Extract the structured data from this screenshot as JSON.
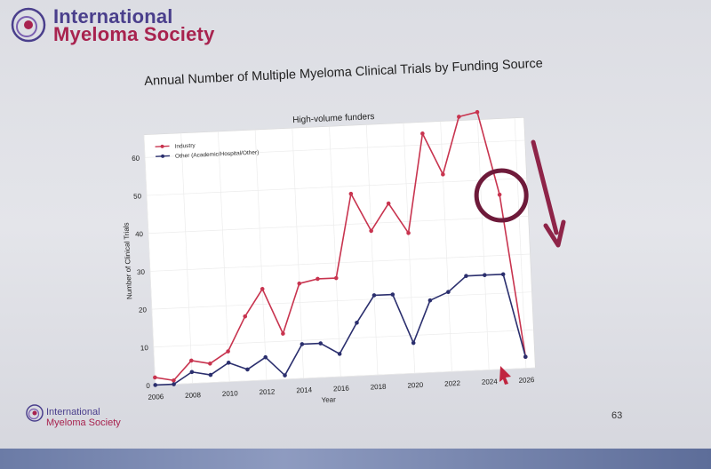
{
  "branding": {
    "top_line1": "International",
    "top_line2": "Myeloma Society",
    "bottom_line1": "International",
    "bottom_line2": "Myeloma Society",
    "purple": "#4a3f8c",
    "magenta": "#a8234f"
  },
  "slide": {
    "page_number": "63"
  },
  "chart_data": {
    "type": "line",
    "title": "Annual Number of Multiple Myeloma Clinical Trials by Funding Source",
    "subtitle": "High-volume funders",
    "xlabel": "Year",
    "ylabel": "Number of Clinical Trials",
    "x": [
      2006,
      2007,
      2008,
      2009,
      2010,
      2011,
      2012,
      2013,
      2014,
      2015,
      2016,
      2017,
      2018,
      2019,
      2020,
      2021,
      2022,
      2023,
      2024,
      2025,
      2026
    ],
    "xticks": [
      2006,
      2008,
      2010,
      2012,
      2014,
      2016,
      2018,
      2020,
      2022,
      2024,
      2026
    ],
    "yticks": [
      0,
      10,
      20,
      30,
      40,
      50,
      60
    ],
    "xlim": [
      2006,
      2026.5
    ],
    "ylim": [
      0,
      66
    ],
    "grid": true,
    "legend_position": "top-left",
    "series": [
      {
        "name": "Industry",
        "color": "#c8344f",
        "values": [
          2,
          1,
          6,
          5,
          8,
          17,
          24,
          12,
          25,
          26,
          26,
          48,
          38,
          45,
          37,
          63,
          52,
          67,
          68,
          46,
          3
        ]
      },
      {
        "name": "Other (Academic/Hospital/Other)",
        "color": "#2b2f6e",
        "values": [
          0,
          0,
          3,
          2,
          5,
          3,
          6,
          1,
          9,
          9,
          6,
          14,
          21,
          21,
          8,
          19,
          21,
          25,
          25,
          25,
          3
        ]
      }
    ],
    "annotations": [
      {
        "kind": "circle",
        "x": 2025,
        "y": 46,
        "color": "#6e1a3a"
      },
      {
        "kind": "arrow-down",
        "color": "#8e2448"
      }
    ]
  }
}
